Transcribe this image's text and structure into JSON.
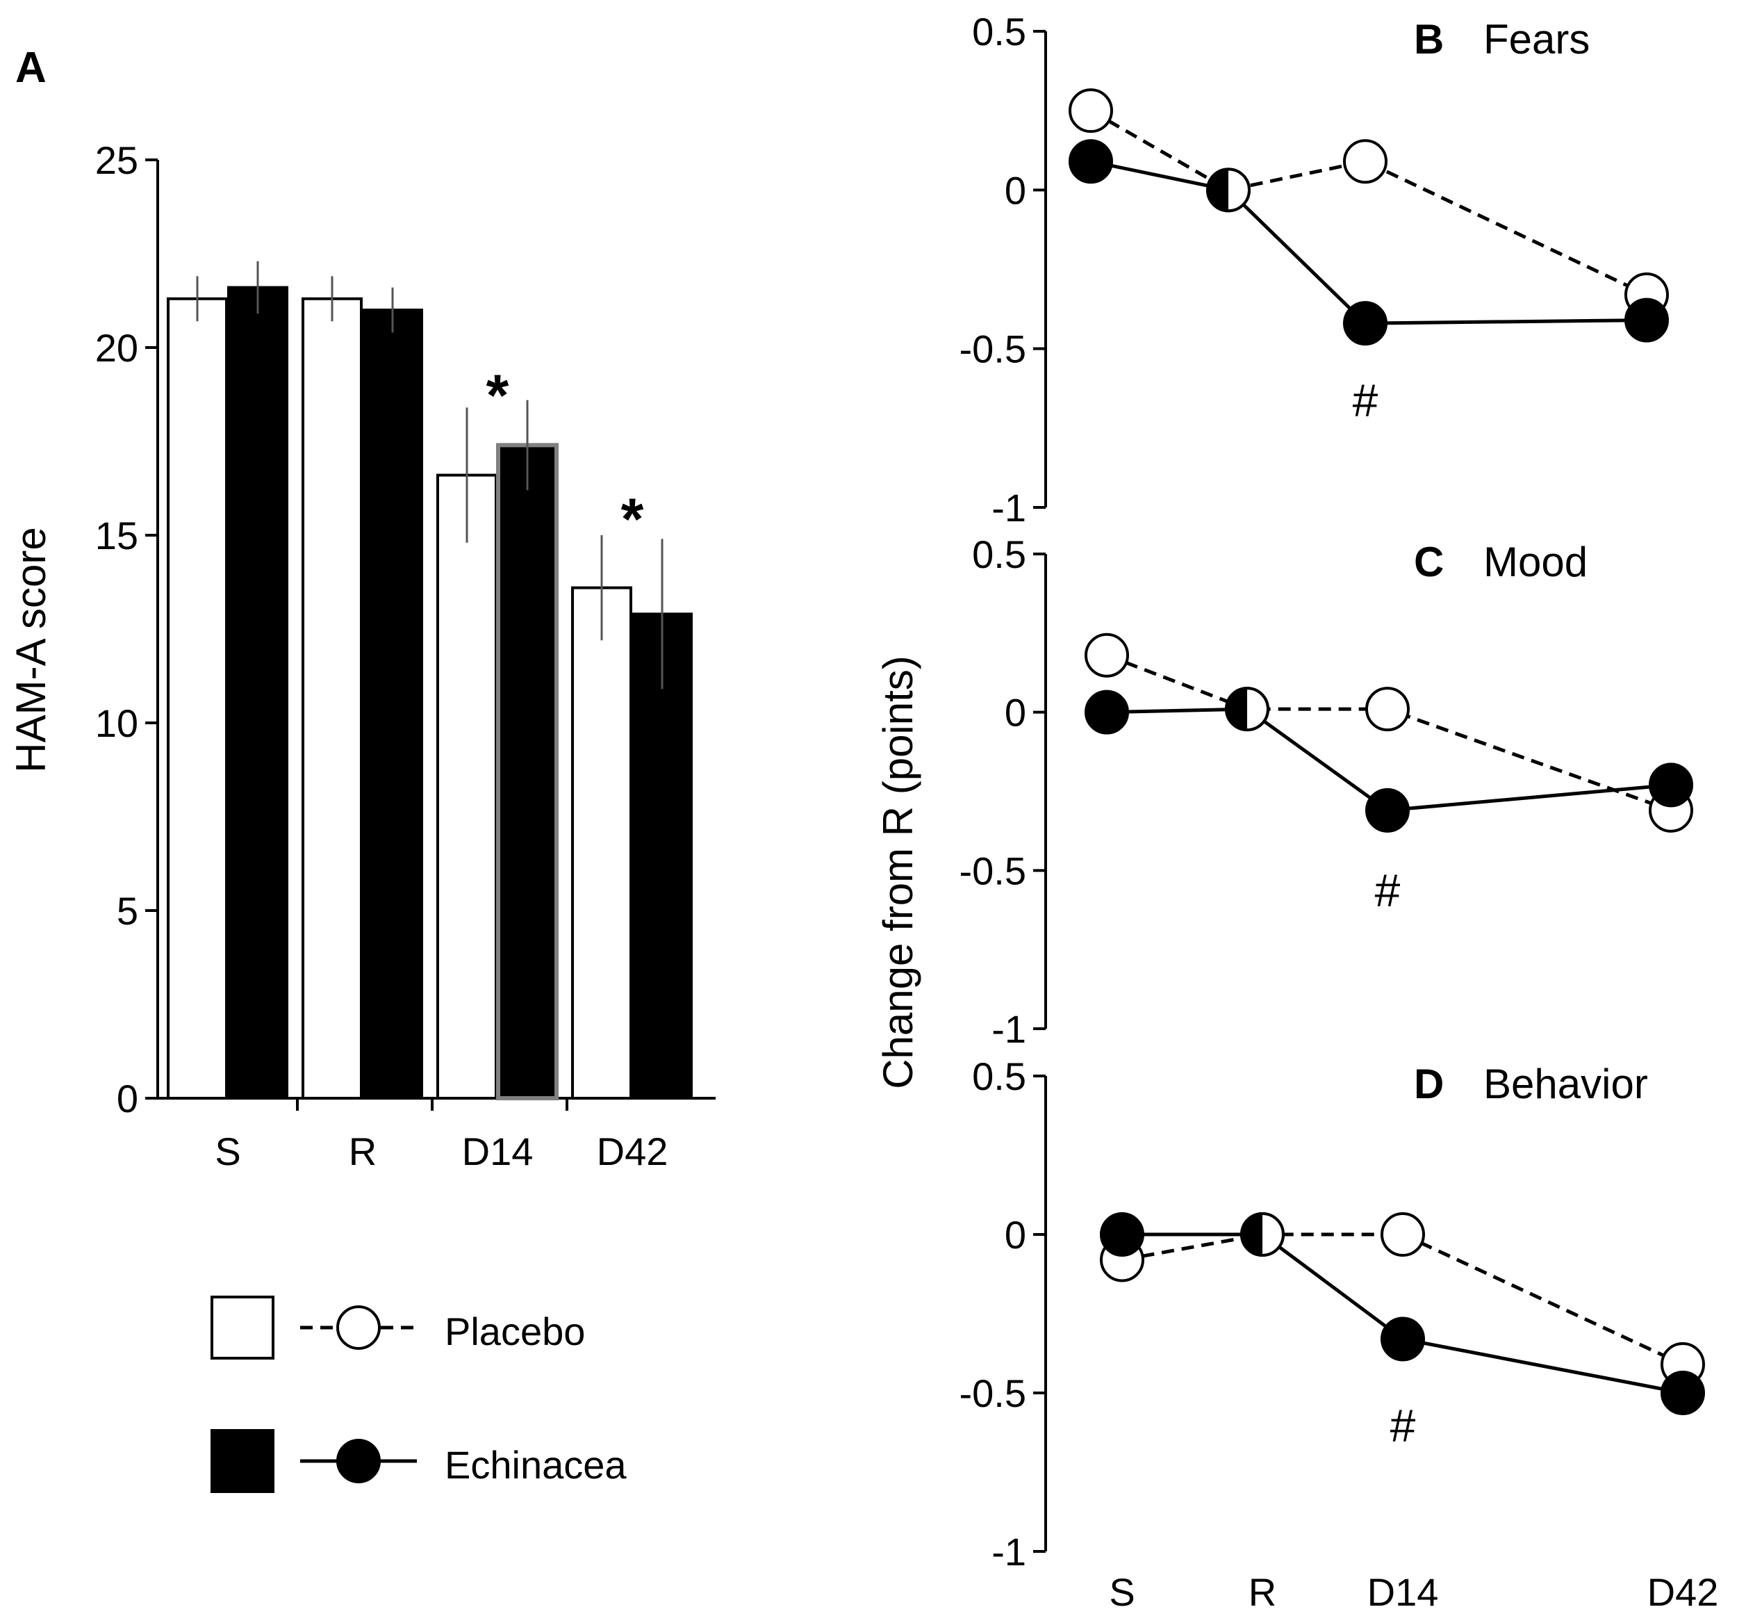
{
  "legend": {
    "placebo": "Placebo",
    "echinacea": "Echinacea"
  },
  "colors": {
    "placebo_fill": "#ffffff",
    "echinacea_fill": "#000000",
    "error_bar": "#555555",
    "highlight_border": "#808080"
  },
  "shared_ylabel": "Change from R (points)",
  "chart_data": [
    {
      "id": "A",
      "type": "bar",
      "panel_label": "A",
      "title": "",
      "xlabel": "",
      "ylabel": "HAM-A score",
      "ylim": [
        0,
        25
      ],
      "yticks": [
        "0",
        "5",
        "10",
        "15",
        "20",
        "25"
      ],
      "categories": [
        "S",
        "R",
        "D14",
        "D42"
      ],
      "series": [
        {
          "name": "Placebo",
          "values": [
            21.3,
            21.3,
            16.6,
            13.6
          ],
          "errors": [
            0.6,
            0.6,
            1.8,
            1.4
          ]
        },
        {
          "name": "Echinacea",
          "values": [
            21.6,
            21.0,
            17.4,
            12.9
          ],
          "errors": [
            0.7,
            0.6,
            1.2,
            2.0
          ]
        }
      ],
      "annotations": [
        {
          "text": "*",
          "category": "D14",
          "y": 18.9
        },
        {
          "text": "*",
          "category": "D42",
          "y": 15.6
        }
      ]
    },
    {
      "id": "B",
      "type": "line",
      "panel_label": "B",
      "title": "Fears",
      "ylim": [
        -1,
        0.5
      ],
      "yticks": [
        "-1",
        "-0.5",
        "0",
        "0.5"
      ],
      "categories": [
        "S",
        "R",
        "D14",
        "D42"
      ],
      "series": [
        {
          "name": "Placebo",
          "values": [
            0.25,
            0.0,
            0.09,
            -0.33
          ]
        },
        {
          "name": "Echinacea",
          "values": [
            0.09,
            0.0,
            -0.42,
            -0.41
          ]
        }
      ],
      "annotations": [
        {
          "text": "#",
          "category": "D14",
          "y": -0.66
        }
      ]
    },
    {
      "id": "C",
      "type": "line",
      "panel_label": "C",
      "title": "Mood",
      "ylim": [
        -1,
        0.5
      ],
      "yticks": [
        "-1",
        "-0.5",
        "0",
        "0.5"
      ],
      "categories": [
        "S",
        "R",
        "D14",
        "D42"
      ],
      "series": [
        {
          "name": "Placebo",
          "values": [
            0.18,
            0.01,
            0.01,
            -0.31
          ]
        },
        {
          "name": "Echinacea",
          "values": [
            0.0,
            0.01,
            -0.31,
            -0.23
          ]
        }
      ],
      "annotations": [
        {
          "text": "#",
          "category": "D14",
          "y": -0.56
        }
      ]
    },
    {
      "id": "D",
      "type": "line",
      "panel_label": "D",
      "title": "Behavior",
      "ylim": [
        -1,
        0.5
      ],
      "yticks": [
        "-1",
        "-0.5",
        "0",
        "0.5"
      ],
      "categories": [
        "S",
        "R",
        "D14",
        "D42"
      ],
      "series": [
        {
          "name": "Placebo",
          "values": [
            -0.08,
            0.0,
            0.0,
            -0.41
          ]
        },
        {
          "name": "Echinacea",
          "values": [
            0.0,
            0.0,
            -0.33,
            -0.5
          ]
        }
      ],
      "annotations": [
        {
          "text": "#",
          "category": "D14",
          "y": -0.6
        }
      ]
    }
  ]
}
